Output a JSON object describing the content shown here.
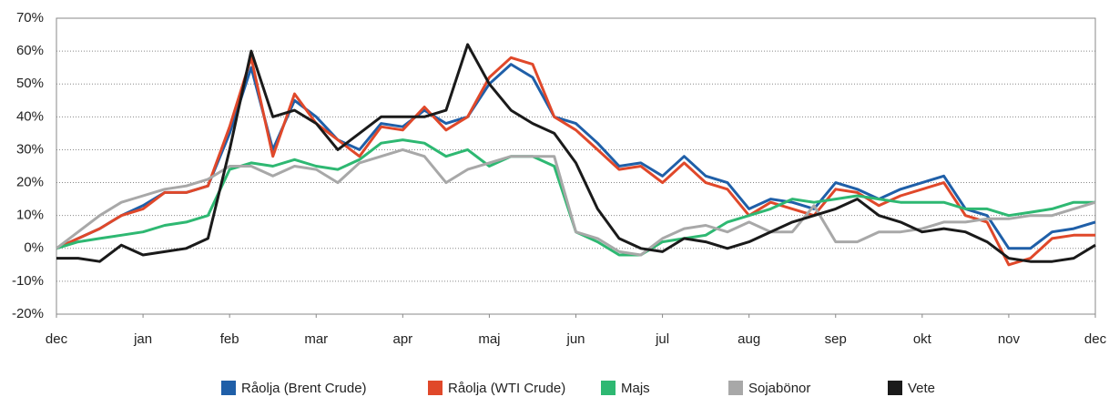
{
  "chart_data": {
    "type": "line",
    "x": [
      0,
      0.25,
      0.5,
      0.75,
      1,
      1.25,
      1.5,
      1.75,
      2,
      2.25,
      2.5,
      2.75,
      3,
      3.25,
      3.5,
      3.75,
      4,
      4.25,
      4.5,
      4.75,
      5,
      5.25,
      5.5,
      5.75,
      6,
      6.25,
      6.5,
      6.75,
      7,
      7.25,
      7.5,
      7.75,
      8,
      8.25,
      8.5,
      8.75,
      9,
      9.25,
      9.5,
      9.75,
      10,
      10.25,
      10.5,
      10.75,
      11,
      11.25,
      11.5,
      11.75,
      12
    ],
    "xlim": [
      0,
      12
    ],
    "xticks": [
      {
        "value": 0,
        "label": "dec"
      },
      {
        "value": 1,
        "label": "jan"
      },
      {
        "value": 2,
        "label": "feb"
      },
      {
        "value": 3,
        "label": "mar"
      },
      {
        "value": 4,
        "label": "apr"
      },
      {
        "value": 5,
        "label": "maj"
      },
      {
        "value": 6,
        "label": "jun"
      },
      {
        "value": 7,
        "label": "jul"
      },
      {
        "value": 8,
        "label": "aug"
      },
      {
        "value": 9,
        "label": "sep"
      },
      {
        "value": 10,
        "label": "okt"
      },
      {
        "value": 11,
        "label": "nov"
      },
      {
        "value": 12,
        "label": "dec"
      }
    ],
    "ylim": [
      -20,
      70
    ],
    "yticks": [
      {
        "value": -20,
        "label": "-20%"
      },
      {
        "value": -10,
        "label": "-10%"
      },
      {
        "value": 0,
        "label": "0%"
      },
      {
        "value": 10,
        "label": "10%"
      },
      {
        "value": 20,
        "label": "20%"
      },
      {
        "value": 30,
        "label": "30%"
      },
      {
        "value": 40,
        "label": "40%"
      },
      {
        "value": 50,
        "label": "50%"
      },
      {
        "value": 60,
        "label": "60%"
      },
      {
        "value": 70,
        "label": "70%"
      }
    ],
    "grid": true,
    "legend": "bottom",
    "series": [
      {
        "name": "Råolja (Brent Crude)",
        "color": "#1f5fa8",
        "values": [
          0,
          3,
          6,
          10,
          13,
          17,
          17,
          19,
          35,
          55,
          30,
          45,
          40,
          33,
          30,
          38,
          37,
          42,
          38,
          40,
          50,
          56,
          52,
          40,
          38,
          32,
          25,
          26,
          22,
          28,
          22,
          20,
          12,
          15,
          14,
          12,
          20,
          18,
          15,
          18,
          20,
          22,
          12,
          10,
          0,
          0,
          5,
          6,
          8
        ]
      },
      {
        "name": "Råolja (WTI Crude)",
        "color": "#e0482a",
        "values": [
          0,
          3,
          6,
          10,
          12,
          17,
          17,
          19,
          37,
          58,
          28,
          47,
          38,
          33,
          28,
          37,
          36,
          43,
          36,
          40,
          52,
          58,
          56,
          40,
          36,
          30,
          24,
          25,
          20,
          26,
          20,
          18,
          10,
          14,
          12,
          10,
          18,
          17,
          13,
          16,
          18,
          20,
          10,
          8,
          -5,
          -3,
          3,
          4,
          4
        ]
      },
      {
        "name": "Majs",
        "color": "#2eb872",
        "values": [
          0,
          2,
          3,
          4,
          5,
          7,
          8,
          10,
          24,
          26,
          25,
          27,
          25,
          24,
          27,
          32,
          33,
          32,
          28,
          30,
          25,
          28,
          28,
          25,
          5,
          2,
          -2,
          -2,
          2,
          3,
          4,
          8,
          10,
          12,
          15,
          14,
          15,
          16,
          15,
          14,
          14,
          14,
          12,
          12,
          10,
          11,
          12,
          14,
          14
        ]
      },
      {
        "name": "Sojabönor",
        "color": "#a8a8a8",
        "values": [
          0,
          5,
          10,
          14,
          16,
          18,
          19,
          21,
          25,
          25,
          22,
          25,
          24,
          20,
          26,
          28,
          30,
          28,
          20,
          24,
          26,
          28,
          28,
          28,
          5,
          3,
          -1,
          -2,
          3,
          6,
          7,
          5,
          8,
          5,
          5,
          13,
          2,
          2,
          5,
          5,
          6,
          8,
          8,
          9,
          9,
          10,
          10,
          12,
          14
        ]
      },
      {
        "name": "Vete",
        "color": "#1a1a1a",
        "values": [
          -3,
          -3,
          -4,
          1,
          -2,
          -1,
          0,
          3,
          30,
          60,
          40,
          42,
          38,
          30,
          35,
          40,
          40,
          40,
          42,
          62,
          50,
          42,
          38,
          35,
          26,
          12,
          3,
          0,
          -1,
          3,
          2,
          0,
          2,
          5,
          8,
          10,
          12,
          15,
          10,
          8,
          5,
          6,
          5,
          2,
          -3,
          -4,
          -4,
          -3,
          1
        ]
      }
    ]
  }
}
